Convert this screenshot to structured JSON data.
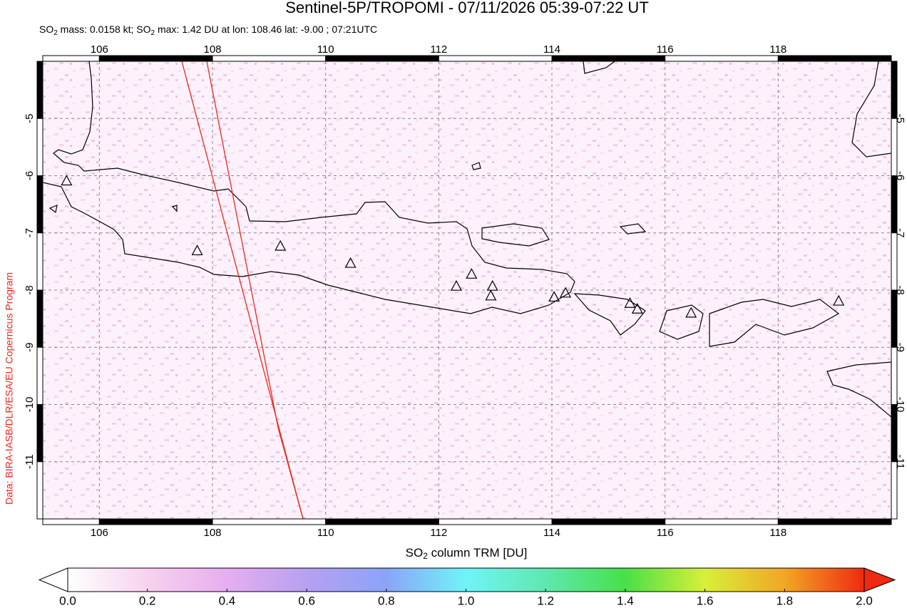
{
  "map": {
    "title": "Sentinel-5P/TROPOMI - 07/11/2026 05:39-07:22 UT",
    "subtitle": [
      "SO",
      "2",
      " mass: 0.0158 kt; SO",
      "2",
      " max: 1.42 DU at lon: 108.46 lat: -9.00 ; 07:21UTC"
    ],
    "credit": "Data: BIRA-IASB/DLR/ESA/EU Copernicus Program",
    "xlim": [
      105,
      120
    ],
    "xticks": [
      106,
      108,
      110,
      112,
      114,
      116,
      118
    ],
    "ylim": [
      -12,
      -4
    ],
    "yticks": [
      -5,
      -6,
      -7,
      -8,
      -9,
      -10,
      -11
    ],
    "grid": true,
    "volcanoes": [
      {
        "lon": 105.42,
        "lat": -6.1
      },
      {
        "lon": 107.73,
        "lat": -7.32
      },
      {
        "lon": 109.2,
        "lat": -7.24
      },
      {
        "lon": 110.44,
        "lat": -7.54
      },
      {
        "lon": 112.31,
        "lat": -7.94
      },
      {
        "lon": 112.58,
        "lat": -7.73
      },
      {
        "lon": 112.95,
        "lat": -7.94
      },
      {
        "lon": 112.92,
        "lat": -8.11
      },
      {
        "lon": 114.04,
        "lat": -8.13
      },
      {
        "lon": 114.24,
        "lat": -8.06
      },
      {
        "lon": 115.38,
        "lat": -8.24
      },
      {
        "lon": 115.51,
        "lat": -8.34
      },
      {
        "lon": 116.46,
        "lat": -8.41
      },
      {
        "lon": 119.07,
        "lat": -8.2
      }
    ],
    "colorbar": {
      "label": [
        "SO",
        "2",
        " column TRM [DU]"
      ],
      "lim": [
        0,
        2
      ],
      "ticks": [
        {
          "value": 0,
          "label": "0.0"
        },
        0.2,
        0.4,
        0.6,
        0.8,
        {
          "value": 1,
          "label": "1.0"
        },
        1.2,
        1.4,
        1.6,
        1.8,
        {
          "value": 2,
          "label": "2.0"
        }
      ]
    }
  }
}
